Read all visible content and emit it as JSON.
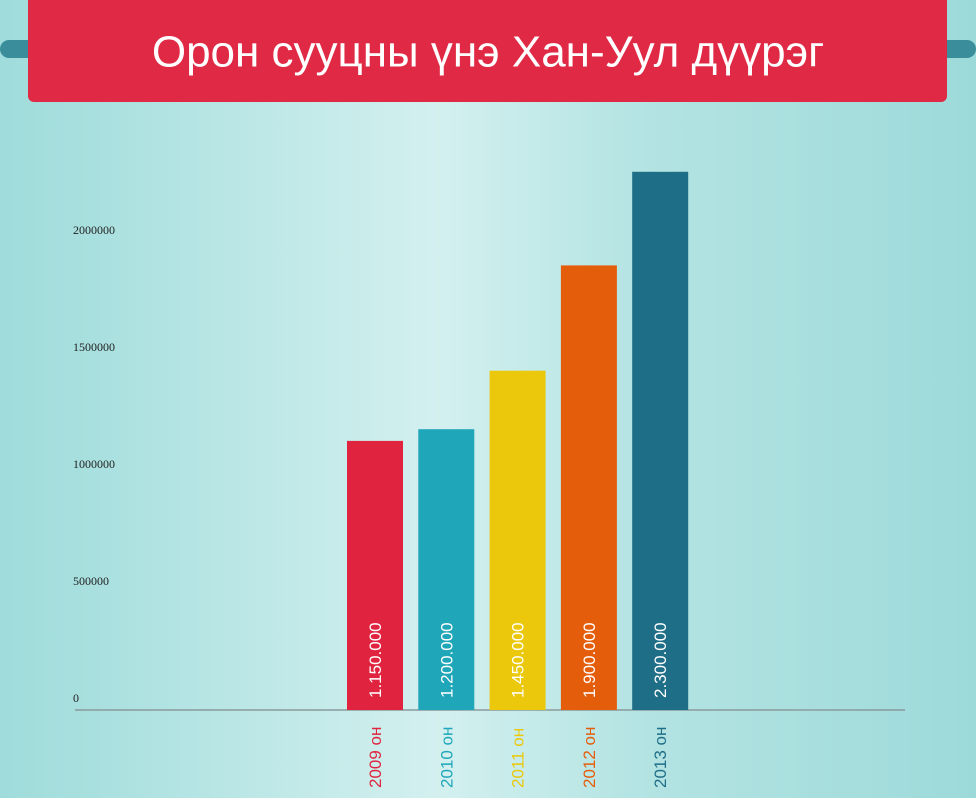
{
  "chart_data": {
    "type": "bar",
    "title": "Орон сууцны үнэ Хан-Уул дүүрэг",
    "categories": [
      "2009 он",
      "2010 он",
      "2011 он",
      "2012 он",
      "2013 он"
    ],
    "values": [
      1150000,
      1200000,
      1450000,
      1900000,
      2300000
    ],
    "value_labels": [
      "1.150.000",
      "1.200.000",
      "1.450.000",
      "1.900.000",
      "2.300.000"
    ],
    "colors": [
      "#e0243f",
      "#1fa6b9",
      "#ebc80b",
      "#e45d0b",
      "#1f6e87"
    ],
    "ylim": [
      0,
      2400000
    ],
    "yticks": [
      0,
      500000,
      1000000,
      1500000,
      2000000
    ]
  }
}
